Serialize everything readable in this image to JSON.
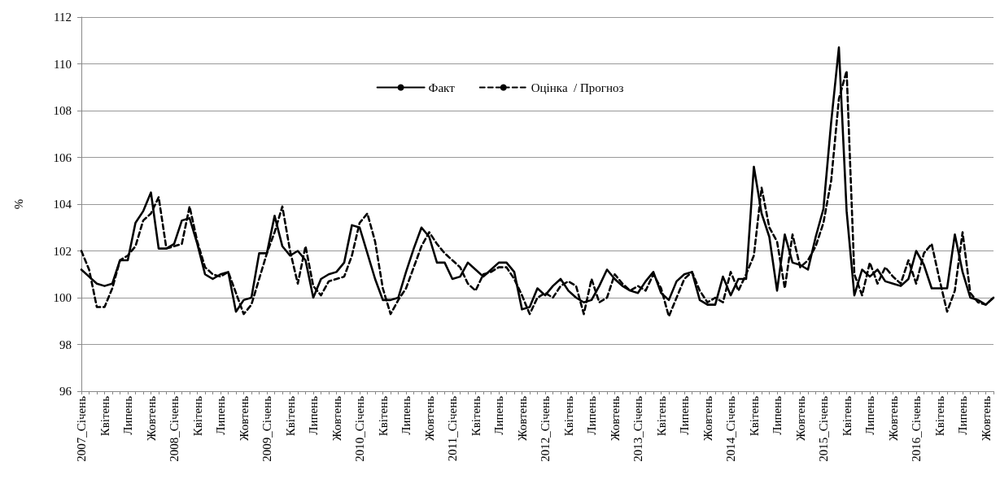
{
  "chart_data": {
    "type": "line",
    "ylabel": "%",
    "categories": [
      "2007_Січень",
      null,
      null,
      "Квітень",
      null,
      null,
      "Липень",
      null,
      null,
      "Жовтень",
      null,
      null,
      "2008_Січень",
      null,
      null,
      "Квітень",
      null,
      null,
      "Липень",
      null,
      null,
      "Жовтень",
      null,
      null,
      "2009_Січень",
      null,
      null,
      "Квітень",
      null,
      null,
      "Липень",
      null,
      null,
      "Жовтень",
      null,
      null,
      "2010_Січень",
      null,
      null,
      "Квітень",
      null,
      null,
      "Липень",
      null,
      null,
      "Жовтень",
      null,
      null,
      "2011_Січень",
      null,
      null,
      "Квітень",
      null,
      null,
      "Липень",
      null,
      null,
      "Жовтень",
      null,
      null,
      "2012_Січень",
      null,
      null,
      "Квітень",
      null,
      null,
      "Липень",
      null,
      null,
      "Жовтень",
      null,
      null,
      "2013_Січень",
      null,
      null,
      "Квітень",
      null,
      null,
      "Липень",
      null,
      null,
      "Жовтень",
      null,
      null,
      "2014_Січень",
      null,
      null,
      "Квітень",
      null,
      null,
      "Липень",
      null,
      null,
      "Жовтень",
      null,
      null,
      "2015_Січень",
      null,
      null,
      "Квітень",
      null,
      null,
      "Липень",
      null,
      null,
      "Жовтень",
      null,
      null,
      "2016_Січень",
      null,
      null,
      "Квітень",
      null,
      null,
      "Липень",
      null,
      null,
      "Жовтень",
      null
    ],
    "series": [
      {
        "name": "Факт",
        "color": "#000000",
        "line_style": "solid",
        "values": [
          101.2,
          100.9,
          100.6,
          100.5,
          100.6,
          101.6,
          101.6,
          103.2,
          103.7,
          104.5,
          102.1,
          102.1,
          102.3,
          103.3,
          103.4,
          102.3,
          101.0,
          100.8,
          101.0,
          101.1,
          99.4,
          99.9,
          100.0,
          101.9,
          101.9,
          103.5,
          102.2,
          101.8,
          102.0,
          101.6,
          100.0,
          100.8,
          101.0,
          101.1,
          101.5,
          103.1,
          103.0,
          101.9,
          100.8,
          99.9,
          99.9,
          100.0,
          101.1,
          102.1,
          103.0,
          102.6,
          101.5,
          101.5,
          100.8,
          100.9,
          101.5,
          101.2,
          100.9,
          101.2,
          101.5,
          101.5,
          101.1,
          99.5,
          99.6,
          100.4,
          100.1,
          100.5,
          100.8,
          100.3,
          100.0,
          99.8,
          99.9,
          100.5,
          101.2,
          100.8,
          100.5,
          100.3,
          100.2,
          100.7,
          101.1,
          100.2,
          99.9,
          100.7,
          101.0,
          101.1,
          99.9,
          99.7,
          99.7,
          100.9,
          100.1,
          100.8,
          100.8,
          105.6,
          103.6,
          102.6,
          100.3,
          102.7,
          101.5,
          101.4,
          101.2,
          102.6,
          103.8,
          107.5,
          110.7,
          103.7,
          100.1,
          101.2,
          100.9,
          101.2,
          100.7,
          100.6,
          100.5,
          100.8,
          102.0,
          101.4,
          100.4,
          100.4,
          100.4,
          102.7,
          101.1,
          100.0,
          99.9,
          99.7,
          100.0
        ]
      },
      {
        "name": "Оцінка  / Прогноз",
        "color": "#000000",
        "line_style": "dashed",
        "values": [
          102.0,
          101.2,
          99.6,
          99.6,
          100.4,
          101.6,
          101.8,
          102.2,
          103.3,
          103.6,
          104.3,
          102.1,
          102.2,
          102.3,
          103.9,
          102.4,
          101.3,
          101.0,
          100.9,
          101.1,
          100.2,
          99.3,
          99.7,
          100.8,
          101.9,
          102.8,
          103.9,
          102.0,
          100.6,
          102.2,
          100.5,
          100.1,
          100.7,
          100.8,
          100.9,
          101.8,
          103.2,
          103.6,
          102.4,
          100.4,
          99.3,
          99.9,
          100.4,
          101.3,
          102.2,
          102.8,
          102.3,
          101.9,
          101.6,
          101.3,
          100.6,
          100.3,
          101.0,
          101.1,
          101.3,
          101.3,
          100.8,
          100.1,
          99.3,
          100.0,
          100.2,
          100.0,
          100.5,
          100.7,
          100.5,
          99.3,
          100.8,
          99.8,
          100.0,
          101.0,
          100.6,
          100.3,
          100.5,
          100.3,
          101.0,
          100.4,
          99.2,
          100.0,
          100.8,
          101.1,
          100.3,
          99.8,
          100.0,
          99.8,
          101.1,
          100.3,
          101.0,
          101.8,
          104.7,
          103.0,
          102.4,
          100.4,
          102.7,
          101.3,
          101.6,
          102.2,
          103.2,
          105.0,
          108.5,
          109.7,
          101.0,
          100.1,
          101.5,
          100.6,
          101.3,
          100.9,
          100.6,
          101.6,
          100.6,
          101.9,
          102.3,
          100.8,
          99.4,
          100.3,
          102.8,
          100.2,
          99.8,
          99.7,
          100.0
        ]
      }
    ],
    "ylim": [
      96,
      112
    ],
    "yticks": [
      96,
      98,
      100,
      102,
      104,
      106,
      108,
      110,
      112
    ],
    "grid": "y",
    "legend": "top",
    "marker": "none"
  }
}
